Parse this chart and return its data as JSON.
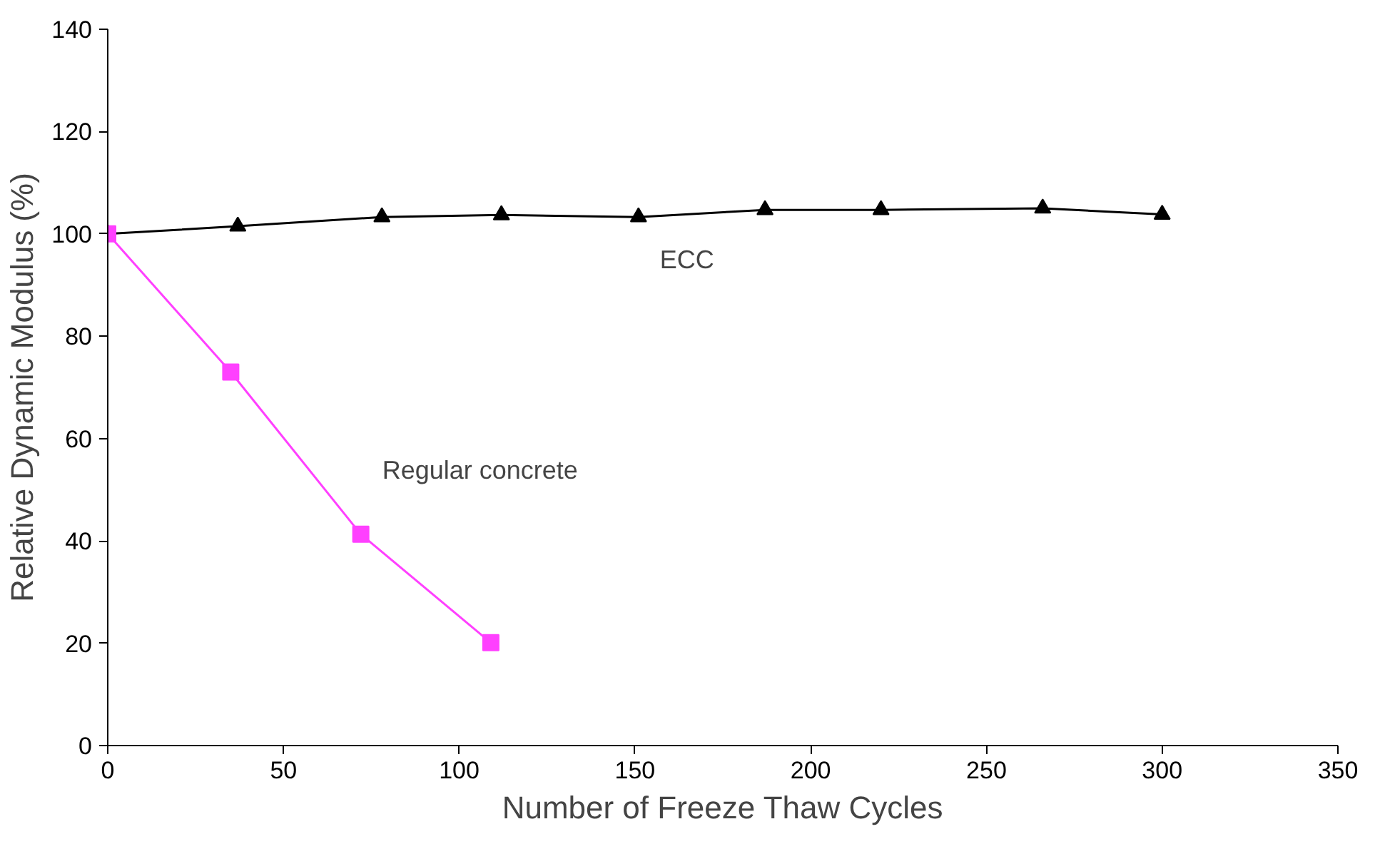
{
  "chart_data": {
    "type": "line",
    "xlabel": "Number of Freeze Thaw Cycles",
    "ylabel": "Relative Dynamic Modulus (%)",
    "xlim": [
      0,
      350
    ],
    "xticks": [
      0,
      50,
      100,
      150,
      200,
      250,
      300,
      350
    ],
    "ylim": [
      0,
      140
    ],
    "yticks": [
      0,
      20,
      40,
      60,
      80,
      100,
      120,
      140
    ],
    "grid": false,
    "line_style": "solid",
    "series": [
      {
        "name": "ECC",
        "color": "#000000",
        "marker": "triangle",
        "x": [
          0,
          37,
          78,
          112,
          151,
          187,
          220,
          266,
          300
        ],
        "values": [
          100,
          101.5,
          103.3,
          103.7,
          103.3,
          104.7,
          104.7,
          105,
          103.8
        ]
      },
      {
        "name": "Regular concrete",
        "color": "#ff40ff",
        "marker": "square",
        "x": [
          0,
          35,
          72,
          109
        ],
        "values": [
          100,
          73,
          41.3,
          20.1
        ]
      }
    ]
  }
}
